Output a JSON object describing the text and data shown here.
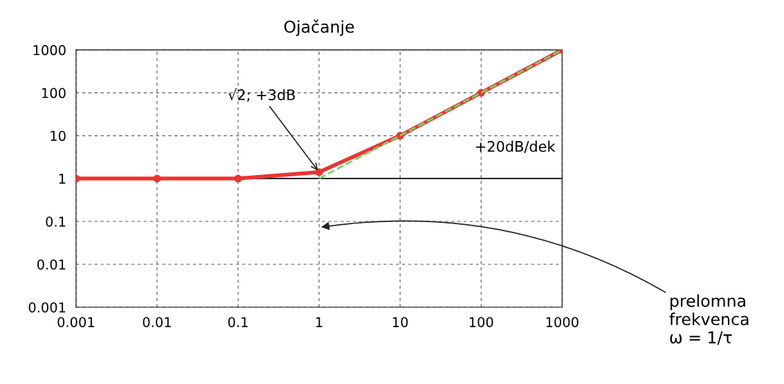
{
  "chart_data": {
    "type": "line",
    "title": "Ojačanje",
    "log": "xy",
    "x": [
      0.001,
      0.01,
      0.1,
      1,
      10,
      100,
      1000
    ],
    "series": [
      {
        "name": null,
        "color": "#ee3333",
        "values": [
          1,
          1,
          1,
          1.414,
          10,
          100,
          1000
        ],
        "marker": "circle",
        "line_style": "solid"
      },
      {
        "name": null,
        "color": "#66dd66",
        "type": "line",
        "x": [
          1,
          1000
        ],
        "values": [
          1,
          1000
        ],
        "marker": "none",
        "line_style": "dashed"
      }
    ],
    "xlim": [
      0.001,
      1000
    ],
    "ylim": [
      0.001,
      1000
    ],
    "xticks": [
      {
        "value": 0.001,
        "label": "0.001"
      },
      {
        "value": 0.01,
        "label": "0.01"
      },
      {
        "value": 0.1,
        "label": "0.1"
      },
      1,
      10,
      100,
      1000
    ],
    "yticks": [
      {
        "value": 0.001,
        "label": "0.001"
      },
      {
        "value": 0.01,
        "label": "0.01"
      },
      {
        "value": 0.1,
        "label": "0.1"
      },
      1,
      10,
      100,
      1000
    ],
    "ref_lines": [
      {
        "axis": "y",
        "value": 1,
        "label": null,
        "color": "#222222",
        "line_style": "solid"
      }
    ],
    "grid": true,
    "annotations": [
      {
        "text": "√2; +3dB",
        "x": 1,
        "y": 1.414
      },
      "+20dB/dek",
      "prelomna\nfrekvenca\nω = 1/τ"
    ]
  }
}
